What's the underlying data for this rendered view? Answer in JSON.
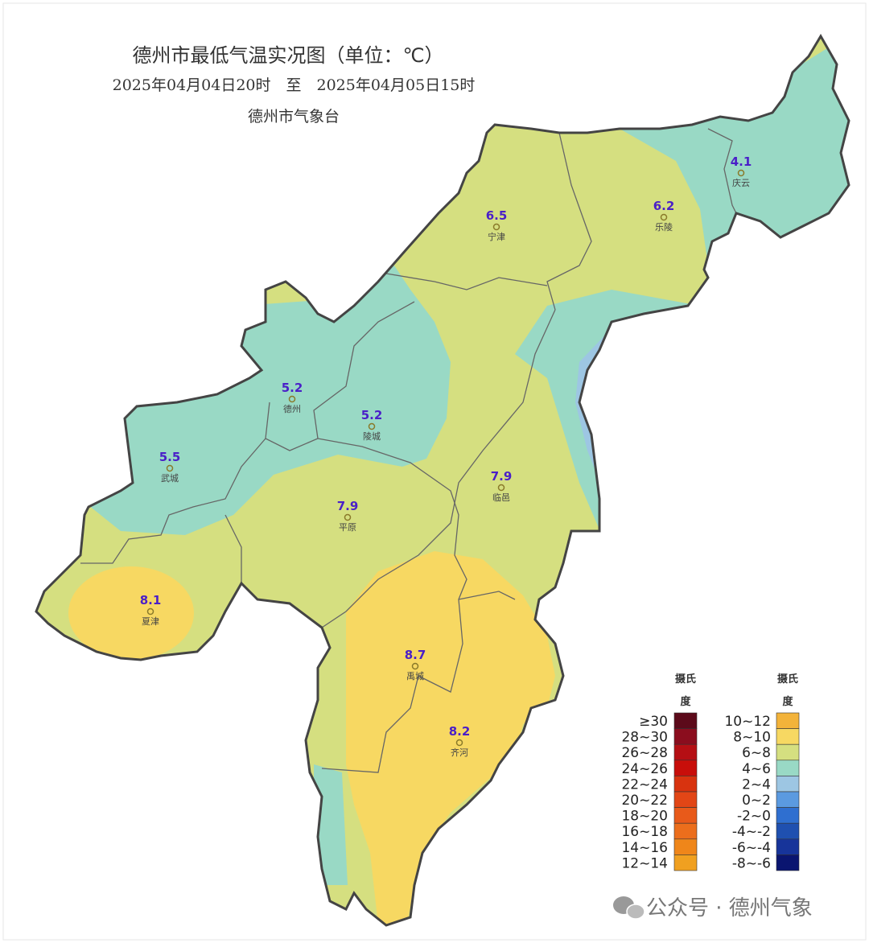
{
  "header": {
    "title": "德州市最低气温实况图（单位：℃）",
    "period": "2025年04月04日20时　至　2025年04月05日15时",
    "issuer": "德州市气象台"
  },
  "stations": [
    {
      "name": "庆云",
      "value": 4.1
    },
    {
      "name": "宁津",
      "value": 6.5
    },
    {
      "name": "乐陵",
      "value": 6.2
    },
    {
      "name": "德州",
      "value": 5.2
    },
    {
      "name": "陵城",
      "value": 5.2
    },
    {
      "name": "武城",
      "value": 5.5
    },
    {
      "name": "临邑",
      "value": 7.9
    },
    {
      "name": "平原",
      "value": 7.9
    },
    {
      "name": "夏津",
      "value": 8.1
    },
    {
      "name": "禹城",
      "value": 8.7
    },
    {
      "name": "齐河",
      "value": 8.2
    }
  ],
  "legend": {
    "columns": [
      {
        "title_lines": [
          "摄氏",
          "度"
        ],
        "items": [
          {
            "label": "≥30",
            "color": "#5c0a1a"
          },
          {
            "label": "28~30",
            "color": "#8b0d1e"
          },
          {
            "label": "26~28",
            "color": "#b50f14"
          },
          {
            "label": "24~26",
            "color": "#c80e0a"
          },
          {
            "label": "22~24",
            "color": "#d8330f"
          },
          {
            "label": "20~22",
            "color": "#e24616"
          },
          {
            "label": "18~20",
            "color": "#e85a1a"
          },
          {
            "label": "16~18",
            "color": "#ec6e1c"
          },
          {
            "label": "14~16",
            "color": "#ef861a"
          },
          {
            "label": "12~14",
            "color": "#f0a020"
          }
        ]
      },
      {
        "title_lines": [
          "摄氏",
          "度"
        ],
        "items": [
          {
            "label": "10~12",
            "color": "#f3b33a"
          },
          {
            "label": "8~10",
            "color": "#f7d862"
          },
          {
            "label": "6~8",
            "color": "#d5df80"
          },
          {
            "label": "4~6",
            "color": "#99d9c5"
          },
          {
            "label": "2~4",
            "color": "#9dc6e3"
          },
          {
            "label": "0~2",
            "color": "#5b9ae0"
          },
          {
            "label": "-2~0",
            "color": "#2f6fd0"
          },
          {
            "label": "-4~-2",
            "color": "#1f50b0"
          },
          {
            "label": "-6~-4",
            "color": "#17349a"
          },
          {
            "label": "-8~-6",
            "color": "#0a1570"
          }
        ]
      }
    ]
  },
  "watermark": "公众号 · 德州气象"
}
